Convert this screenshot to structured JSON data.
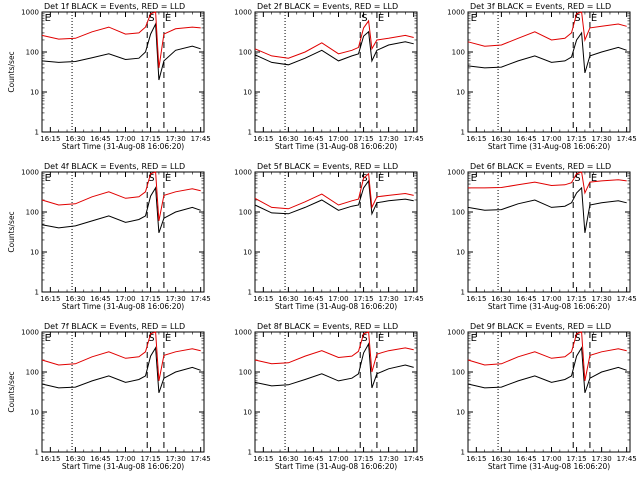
{
  "figure": {
    "panels": [
      {
        "title": "Det 1f BLACK = Events, RED = LLD"
      },
      {
        "title": "Det 2f BLACK = Events, RED = LLD"
      },
      {
        "title": "Det 3f BLACK = Events, RED = LLD"
      },
      {
        "title": "Det 4f BLACK = Events, RED = LLD"
      },
      {
        "title": "Det 5f BLACK = Events, RED = LLD"
      },
      {
        "title": "Det 6f BLACK = Events, RED = LLD"
      },
      {
        "title": "Det 7f BLACK = Events, RED = LLD"
      },
      {
        "title": "Det 8f BLACK = Events, RED = LLD"
      },
      {
        "title": "Det 9f BLACK = Events, RED = LLD"
      }
    ],
    "colors": {
      "events": "#000000",
      "lld": "#e00000",
      "axes": "#000000",
      "background": "#ffffff"
    }
  },
  "chart_data": [
    {
      "type": "line",
      "title": "Det 1f BLACK = Events, RED = LLD",
      "xlabel": "Start Time (31-Aug-08 16:06:20)",
      "ylabel": "Counts/sec",
      "yscale": "log",
      "ylim": [
        1,
        1000
      ],
      "xlim": [
        "16:10",
        "17:47"
      ],
      "x_ticks": [
        "16:15",
        "16:30",
        "16:45",
        "17:00",
        "17:15",
        "17:30",
        "17:45"
      ],
      "y_ticks": [
        "1",
        "10",
        "100",
        "1000"
      ],
      "grid": false,
      "markers": [
        {
          "label": "E",
          "x": "16:11"
        },
        {
          "label": "S",
          "x": "17:13"
        },
        {
          "label": "E",
          "x": "17:23"
        }
      ],
      "dotted_line_x": "16:28",
      "dashed_lines_x": [
        "17:13",
        "17:23"
      ],
      "x": [
        "16:10",
        "16:20",
        "16:30",
        "16:40",
        "16:50",
        "17:00",
        "17:08",
        "17:12",
        "17:15",
        "17:18",
        "17:20",
        "17:23",
        "17:30",
        "17:40",
        "17:45"
      ],
      "series": [
        {
          "name": "BLACK = Events",
          "values": [
            60,
            55,
            58,
            72,
            90,
            65,
            70,
            100,
            280,
            500,
            20,
            60,
            110,
            140,
            120
          ]
        },
        {
          "name": "RED = LLD",
          "values": [
            260,
            210,
            220,
            320,
            420,
            280,
            300,
            420,
            900,
            1000,
            40,
            280,
            380,
            420,
            400
          ]
        }
      ]
    },
    {
      "type": "line",
      "title": "Det 2f BLACK = Events, RED = LLD",
      "xlabel": "Start Time (31-Aug-08 16:06:20)",
      "ylabel": "",
      "yscale": "log",
      "ylim": [
        1,
        1000
      ],
      "xlim": [
        "16:10",
        "17:47"
      ],
      "x_ticks": [
        "16:15",
        "16:30",
        "16:45",
        "17:00",
        "17:15",
        "17:30",
        "17:45"
      ],
      "y_ticks": [
        "1",
        "10",
        "100",
        "1000"
      ],
      "grid": false,
      "markers": [
        {
          "label": "S",
          "x": "17:13"
        },
        {
          "label": "E",
          "x": "17:23"
        }
      ],
      "dotted_line_x": "16:28",
      "dashed_lines_x": [
        "17:13",
        "17:23"
      ],
      "x": [
        "16:10",
        "16:20",
        "16:30",
        "16:40",
        "16:50",
        "17:00",
        "17:08",
        "17:12",
        "17:15",
        "17:18",
        "17:20",
        "17:23",
        "17:30",
        "17:40",
        "17:45"
      ],
      "series": [
        {
          "name": "BLACK = Events",
          "values": [
            85,
            55,
            48,
            70,
            110,
            60,
            80,
            90,
            250,
            320,
            60,
            110,
            150,
            180,
            160
          ]
        },
        {
          "name": "RED = LLD",
          "values": [
            120,
            80,
            70,
            100,
            170,
            90,
            110,
            130,
            400,
            600,
            120,
            200,
            220,
            260,
            230
          ]
        }
      ]
    },
    {
      "type": "line",
      "title": "Det 3f BLACK = Events, RED = LLD",
      "xlabel": "Start Time (31-Aug-08 16:06:20)",
      "ylabel": "",
      "yscale": "log",
      "ylim": [
        1,
        1000
      ],
      "xlim": [
        "16:10",
        "17:47"
      ],
      "x_ticks": [
        "16:15",
        "16:30",
        "16:45",
        "17:00",
        "17:15",
        "17:30",
        "17:45"
      ],
      "y_ticks": [
        "1",
        "10",
        "100",
        "1000"
      ],
      "grid": false,
      "markers": [
        {
          "label": "E",
          "x": "16:11"
        },
        {
          "label": "S",
          "x": "17:13"
        },
        {
          "label": "E",
          "x": "17:23"
        }
      ],
      "dotted_line_x": "16:28",
      "dashed_lines_x": [
        "17:13",
        "17:23"
      ],
      "x": [
        "16:10",
        "16:20",
        "16:30",
        "16:40",
        "16:50",
        "17:00",
        "17:08",
        "17:12",
        "17:15",
        "17:18",
        "17:20",
        "17:23",
        "17:30",
        "17:40",
        "17:45"
      ],
      "series": [
        {
          "name": "BLACK = Events",
          "values": [
            45,
            40,
            42,
            60,
            80,
            55,
            60,
            75,
            200,
            300,
            30,
            80,
            100,
            130,
            110
          ]
        },
        {
          "name": "RED = LLD",
          "values": [
            180,
            140,
            150,
            220,
            320,
            200,
            220,
            300,
            900,
            1000,
            200,
            400,
            440,
            500,
            440
          ]
        }
      ]
    },
    {
      "type": "line",
      "title": "Det 4f BLACK = Events, RED = LLD",
      "xlabel": "Start Time (31-Aug-08 16:06:20)",
      "ylabel": "Counts/sec",
      "yscale": "log",
      "ylim": [
        1,
        1000
      ],
      "xlim": [
        "16:10",
        "17:47"
      ],
      "x_ticks": [
        "16:15",
        "16:30",
        "16:45",
        "17:00",
        "17:15",
        "17:30",
        "17:45"
      ],
      "y_ticks": [
        "1",
        "10",
        "100",
        "1000"
      ],
      "grid": false,
      "markers": [
        {
          "label": "E",
          "x": "16:11"
        },
        {
          "label": "S",
          "x": "17:13"
        },
        {
          "label": "E",
          "x": "17:23"
        }
      ],
      "dotted_line_x": "16:28",
      "dashed_lines_x": [
        "17:13",
        "17:23"
      ],
      "x": [
        "16:10",
        "16:20",
        "16:30",
        "16:40",
        "16:50",
        "17:00",
        "17:08",
        "17:12",
        "17:15",
        "17:18",
        "17:20",
        "17:23",
        "17:30",
        "17:40",
        "17:45"
      ],
      "series": [
        {
          "name": "BLACK = Events",
          "values": [
            48,
            40,
            45,
            60,
            80,
            55,
            65,
            80,
            250,
            400,
            30,
            70,
            100,
            130,
            110
          ]
        },
        {
          "name": "RED = LLD",
          "values": [
            200,
            150,
            160,
            240,
            320,
            220,
            240,
            320,
            900,
            1000,
            60,
            260,
            320,
            380,
            340
          ]
        }
      ]
    },
    {
      "type": "line",
      "title": "Det 5f BLACK = Events, RED = LLD",
      "xlabel": "Start Time (31-Aug-08 16:06:20)",
      "ylabel": "",
      "yscale": "log",
      "ylim": [
        1,
        1000
      ],
      "xlim": [
        "16:10",
        "17:47"
      ],
      "x_ticks": [
        "16:15",
        "16:30",
        "16:45",
        "17:00",
        "17:15",
        "17:30",
        "17:45"
      ],
      "y_ticks": [
        "1",
        "10",
        "100",
        "1000"
      ],
      "grid": false,
      "markers": [
        {
          "label": "S",
          "x": "17:13"
        },
        {
          "label": "E",
          "x": "17:23"
        }
      ],
      "dotted_line_x": "16:28",
      "dashed_lines_x": [
        "17:13",
        "17:23"
      ],
      "x": [
        "16:10",
        "16:20",
        "16:30",
        "16:40",
        "16:50",
        "17:00",
        "17:08",
        "17:12",
        "17:15",
        "17:18",
        "17:20",
        "17:23",
        "17:30",
        "17:40",
        "17:45"
      ],
      "series": [
        {
          "name": "BLACK = Events",
          "values": [
            150,
            95,
            90,
            130,
            200,
            110,
            140,
            150,
            400,
            600,
            90,
            170,
            190,
            210,
            190
          ]
        },
        {
          "name": "RED = LLD",
          "values": [
            220,
            130,
            120,
            180,
            280,
            150,
            190,
            210,
            700,
            900,
            130,
            240,
            260,
            290,
            260
          ]
        }
      ]
    },
    {
      "type": "line",
      "title": "Det 6f BLACK = Events, RED = LLD",
      "xlabel": "Start Time (31-Aug-08 16:06:20)",
      "ylabel": "",
      "yscale": "log",
      "ylim": [
        1,
        1000
      ],
      "xlim": [
        "16:10",
        "17:47"
      ],
      "x_ticks": [
        "16:15",
        "16:30",
        "16:45",
        "17:00",
        "17:15",
        "17:30",
        "17:45"
      ],
      "y_ticks": [
        "1",
        "10",
        "100",
        "1000"
      ],
      "grid": false,
      "markers": [
        {
          "label": "E",
          "x": "16:11"
        },
        {
          "label": "S",
          "x": "17:13"
        },
        {
          "label": "E",
          "x": "17:23"
        }
      ],
      "dotted_line_x": "16:28",
      "dashed_lines_x": [
        "17:13",
        "17:23"
      ],
      "x": [
        "16:10",
        "16:20",
        "16:30",
        "16:40",
        "16:50",
        "17:00",
        "17:08",
        "17:12",
        "17:15",
        "17:18",
        "17:20",
        "17:23",
        "17:30",
        "17:40",
        "17:45"
      ],
      "series": [
        {
          "name": "BLACK = Events",
          "values": [
            130,
            110,
            115,
            160,
            200,
            130,
            140,
            170,
            300,
            400,
            30,
            150,
            170,
            190,
            170
          ]
        },
        {
          "name": "RED = LLD",
          "values": [
            400,
            400,
            410,
            480,
            560,
            460,
            480,
            540,
            900,
            1000,
            300,
            560,
            600,
            640,
            600
          ]
        }
      ]
    },
    {
      "type": "line",
      "title": "Det 7f BLACK = Events, RED = LLD",
      "xlabel": "Start Time (31-Aug-08 16:06:20)",
      "ylabel": "Counts/sec",
      "yscale": "log",
      "ylim": [
        1,
        1000
      ],
      "xlim": [
        "16:10",
        "17:47"
      ],
      "x_ticks": [
        "16:15",
        "16:30",
        "16:45",
        "17:00",
        "17:15",
        "17:30",
        "17:45"
      ],
      "y_ticks": [
        "1",
        "10",
        "100",
        "1000"
      ],
      "grid": false,
      "markers": [
        {
          "label": "E",
          "x": "16:11"
        },
        {
          "label": "S",
          "x": "17:13"
        },
        {
          "label": "E",
          "x": "17:23"
        }
      ],
      "dotted_line_x": "16:28",
      "dashed_lines_x": [
        "17:13",
        "17:23"
      ],
      "x": [
        "16:10",
        "16:20",
        "16:30",
        "16:40",
        "16:50",
        "17:00",
        "17:08",
        "17:12",
        "17:15",
        "17:18",
        "17:20",
        "17:23",
        "17:30",
        "17:40",
        "17:45"
      ],
      "series": [
        {
          "name": "BLACK = Events",
          "values": [
            50,
            40,
            42,
            60,
            80,
            55,
            65,
            80,
            250,
            400,
            30,
            70,
            100,
            130,
            110
          ]
        },
        {
          "name": "RED = LLD",
          "values": [
            200,
            150,
            160,
            240,
            320,
            220,
            240,
            320,
            900,
            1000,
            60,
            260,
            320,
            380,
            340
          ]
        }
      ]
    },
    {
      "type": "line",
      "title": "Det 8f BLACK = Events, RED = LLD",
      "xlabel": "Start Time (31-Aug-08 16:06:20)",
      "ylabel": "",
      "yscale": "log",
      "ylim": [
        1,
        1000
      ],
      "xlim": [
        "16:10",
        "17:47"
      ],
      "x_ticks": [
        "16:15",
        "16:30",
        "16:45",
        "17:00",
        "17:15",
        "17:30",
        "17:45"
      ],
      "y_ticks": [
        "1",
        "10",
        "100",
        "1000"
      ],
      "grid": false,
      "markers": [
        {
          "label": "S",
          "x": "17:13"
        },
        {
          "label": "E",
          "x": "17:23"
        }
      ],
      "dotted_line_x": "16:28",
      "dashed_lines_x": [
        "17:13",
        "17:23"
      ],
      "x": [
        "16:10",
        "16:20",
        "16:30",
        "16:40",
        "16:50",
        "17:00",
        "17:08",
        "17:12",
        "17:15",
        "17:18",
        "17:20",
        "17:23",
        "17:30",
        "17:40",
        "17:45"
      ],
      "series": [
        {
          "name": "BLACK = Events",
          "values": [
            55,
            45,
            48,
            65,
            90,
            60,
            70,
            90,
            300,
            500,
            40,
            90,
            120,
            150,
            130
          ]
        },
        {
          "name": "RED = LLD",
          "values": [
            200,
            160,
            170,
            250,
            340,
            230,
            250,
            330,
            900,
            1000,
            100,
            280,
            340,
            400,
            360
          ]
        }
      ]
    },
    {
      "type": "line",
      "title": "Det 9f BLACK = Events, RED = LLD",
      "xlabel": "Start Time (31-Aug-08 16:06:20)",
      "ylabel": "",
      "yscale": "log",
      "ylim": [
        1,
        1000
      ],
      "xlim": [
        "16:10",
        "17:47"
      ],
      "x_ticks": [
        "16:15",
        "16:30",
        "16:45",
        "17:00",
        "17:15",
        "17:30",
        "17:45"
      ],
      "y_ticks": [
        "1",
        "10",
        "100",
        "1000"
      ],
      "grid": false,
      "markers": [
        {
          "label": "E",
          "x": "16:11"
        },
        {
          "label": "S",
          "x": "17:13"
        },
        {
          "label": "E",
          "x": "17:23"
        }
      ],
      "dotted_line_x": "16:28",
      "dashed_lines_x": [
        "17:13",
        "17:23"
      ],
      "x": [
        "16:10",
        "16:20",
        "16:30",
        "16:40",
        "16:50",
        "17:00",
        "17:08",
        "17:12",
        "17:15",
        "17:18",
        "17:20",
        "17:23",
        "17:30",
        "17:40",
        "17:45"
      ],
      "series": [
        {
          "name": "BLACK = Events",
          "values": [
            50,
            40,
            42,
            60,
            80,
            55,
            65,
            80,
            250,
            400,
            30,
            70,
            100,
            130,
            110
          ]
        },
        {
          "name": "RED = LLD",
          "values": [
            200,
            150,
            160,
            240,
            320,
            220,
            240,
            320,
            900,
            1000,
            60,
            260,
            320,
            380,
            340
          ]
        }
      ]
    }
  ]
}
